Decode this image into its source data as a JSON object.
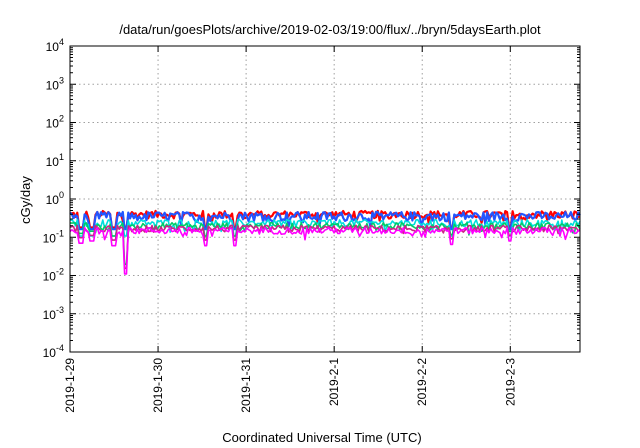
{
  "chart_data": {
    "type": "line",
    "title": "/data/run/goesPlots/archive/2019-02-03/19:00/flux/../bryn/5daysEarth.plot",
    "xlabel": "Coordinated Universal Time (UTC)",
    "ylabel": "cGy/day",
    "yscale": "log",
    "ylim": [
      0.0001,
      10000
    ],
    "y_ticks": [
      {
        "base": "10",
        "exp": "-4",
        "value": 0.0001
      },
      {
        "base": "10",
        "exp": "-3",
        "value": 0.001
      },
      {
        "base": "10",
        "exp": "-2",
        "value": 0.01
      },
      {
        "base": "10",
        "exp": "-1",
        "value": 0.1
      },
      {
        "base": "10",
        "exp": "0",
        "value": 1
      },
      {
        "base": "10",
        "exp": "1",
        "value": 10
      },
      {
        "base": "10",
        "exp": "2",
        "value": 100
      },
      {
        "base": "10",
        "exp": "3",
        "value": 1000
      },
      {
        "base": "10",
        "exp": "4",
        "value": 10000
      }
    ],
    "x_range": [
      "2019-01-29 00:00",
      "2019-02-03 19:00"
    ],
    "x_ticks": [
      "2019-1-29",
      "2019-1-30",
      "2019-1-31",
      "2019-2-1",
      "2019-2-2",
      "2019-2-3"
    ],
    "grid": true,
    "legend": "none",
    "series": [
      {
        "color": "#ff0000",
        "base_value": 0.4,
        "noise": 0.09
      },
      {
        "color": "#2255ff",
        "base_value": 0.36,
        "noise": 0.1
      },
      {
        "color": "#00dddd",
        "base_value": 0.24,
        "noise": 0.05
      },
      {
        "color": "#00cc66",
        "base_value": 0.2,
        "noise": 0.04
      },
      {
        "color": "#cc2288",
        "base_value": 0.17,
        "noise": 0.035
      },
      {
        "color": "#ff00ff",
        "base_value": 0.15,
        "noise": 0.03
      }
    ],
    "dips": [
      {
        "time": "2019-01-29 03:00",
        "value": 0.07
      },
      {
        "time": "2019-01-29 06:00",
        "value": 0.08
      },
      {
        "time": "2019-01-29 12:00",
        "value": 0.06
      },
      {
        "time": "2019-01-29 15:00",
        "value": 0.011
      },
      {
        "time": "2019-01-30 13:00",
        "value": 0.06
      },
      {
        "time": "2019-01-30 21:00",
        "value": 0.06
      },
      {
        "time": "2019-02-02 08:00",
        "value": 0.065
      },
      {
        "time": "2019-02-03 00:00",
        "value": 0.08
      }
    ]
  }
}
